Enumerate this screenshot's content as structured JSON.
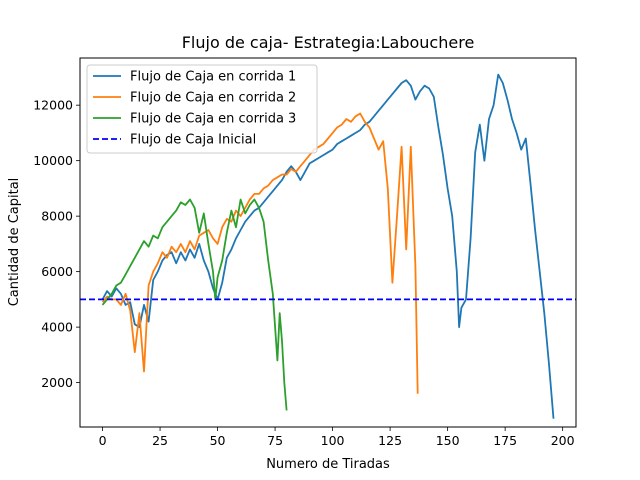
{
  "chart_data": {
    "type": "line",
    "title": "Flujo de caja- Estrategia:Labouchere",
    "xlabel": "Numero de Tiradas",
    "ylabel": "Cantidad de Capital",
    "xlim": [
      -9.8,
      205.8
    ],
    "ylim": [
      400,
      13700
    ],
    "xticks": [
      0,
      25,
      50,
      75,
      100,
      125,
      150,
      175,
      200
    ],
    "yticks": [
      2000,
      4000,
      6000,
      8000,
      10000,
      12000
    ],
    "grid": false,
    "legend_position": "upper-left",
    "colors": {
      "run1": "#1f77b4",
      "run2": "#ff7f0e",
      "run3": "#2ca02c",
      "initial": "#0000ff"
    },
    "series": [
      {
        "name": "Flujo de Caja en corrida 1",
        "color": "#1f77b4",
        "style": "solid",
        "x": [
          0,
          2,
          4,
          6,
          8,
          10,
          12,
          14,
          16,
          18,
          20,
          22,
          24,
          26,
          28,
          30,
          32,
          34,
          36,
          38,
          40,
          42,
          44,
          46,
          48,
          50,
          52,
          54,
          56,
          58,
          60,
          62,
          64,
          66,
          68,
          70,
          72,
          74,
          76,
          78,
          80,
          82,
          84,
          86,
          88,
          90,
          92,
          94,
          96,
          98,
          100,
          102,
          104,
          106,
          108,
          110,
          112,
          114,
          116,
          118,
          120,
          122,
          124,
          126,
          128,
          130,
          132,
          134,
          136,
          138,
          140,
          142,
          144,
          146,
          148,
          150,
          152,
          154,
          155,
          156,
          158,
          160,
          162,
          164,
          166,
          168,
          170,
          172,
          174,
          176,
          178,
          180,
          182,
          184,
          186,
          188,
          190,
          192,
          194,
          196
        ],
        "y": [
          5000,
          5300,
          5100,
          5400,
          5200,
          4800,
          4900,
          4100,
          4000,
          4800,
          4200,
          5700,
          6000,
          6400,
          6600,
          6700,
          6300,
          6700,
          6400,
          6800,
          6500,
          7000,
          6400,
          6000,
          5400,
          5000,
          5600,
          6500,
          6800,
          7200,
          7500,
          7800,
          8000,
          8200,
          8300,
          8500,
          8700,
          8900,
          9100,
          9300,
          9600,
          9800,
          9600,
          9300,
          9600,
          9900,
          10000,
          10100,
          10200,
          10300,
          10400,
          10600,
          10700,
          10800,
          10900,
          11000,
          11100,
          11300,
          11400,
          11600,
          11800,
          12000,
          12200,
          12400,
          12600,
          12800,
          12900,
          12700,
          12200,
          12500,
          12700,
          12600,
          12300,
          11200,
          10200,
          9000,
          8000,
          6000,
          4000,
          4700,
          5000,
          7200,
          10300,
          11300,
          10000,
          11500,
          12000,
          13100,
          12800,
          12200,
          11500,
          11000,
          10400,
          10800,
          9200,
          7500,
          6000,
          4500,
          2700,
          700
        ]
      },
      {
        "name": "Flujo de Caja en corrida 2",
        "color": "#ff7f0e",
        "style": "solid",
        "x": [
          0,
          2,
          4,
          6,
          8,
          10,
          12,
          14,
          16,
          18,
          20,
          22,
          24,
          26,
          28,
          30,
          32,
          34,
          36,
          38,
          40,
          42,
          44,
          46,
          48,
          50,
          52,
          54,
          56,
          58,
          60,
          62,
          64,
          66,
          68,
          70,
          72,
          74,
          76,
          78,
          80,
          82,
          84,
          86,
          88,
          90,
          92,
          94,
          96,
          98,
          100,
          102,
          104,
          106,
          108,
          110,
          112,
          114,
          116,
          118,
          120,
          122,
          124,
          126,
          128,
          130,
          132,
          134,
          136,
          137
        ],
        "y": [
          4900,
          5100,
          5000,
          5000,
          4800,
          5200,
          4600,
          3100,
          4500,
          2400,
          5500,
          6000,
          6300,
          6700,
          6500,
          6900,
          6700,
          7000,
          6700,
          7100,
          6800,
          7300,
          7400,
          7500,
          7200,
          7000,
          7600,
          7900,
          7800,
          8200,
          8000,
          8300,
          8600,
          8800,
          8800,
          9000,
          9100,
          9300,
          9400,
          9500,
          9500,
          9700,
          9600,
          9800,
          10000,
          10200,
          10400,
          10500,
          10600,
          10800,
          11000,
          11200,
          11300,
          11500,
          11400,
          11600,
          11700,
          11400,
          11200,
          10800,
          10400,
          10700,
          9000,
          5600,
          8000,
          10500,
          6800,
          10500,
          6200,
          1600
        ]
      },
      {
        "name": "Flujo de Caja en corrida 3",
        "color": "#2ca02c",
        "style": "solid",
        "x": [
          0,
          2,
          4,
          6,
          8,
          10,
          12,
          14,
          16,
          18,
          20,
          22,
          24,
          26,
          28,
          30,
          32,
          34,
          36,
          38,
          40,
          42,
          44,
          46,
          48,
          49,
          50,
          52,
          54,
          56,
          58,
          60,
          62,
          64,
          66,
          68,
          70,
          72,
          74,
          76,
          77,
          78,
          79,
          80
        ],
        "y": [
          4800,
          5000,
          5200,
          5500,
          5600,
          5900,
          6200,
          6500,
          6800,
          7100,
          6900,
          7300,
          7200,
          7600,
          7800,
          8000,
          8200,
          8500,
          8400,
          8600,
          8300,
          7400,
          8100,
          7000,
          6000,
          5000,
          5800,
          6400,
          7400,
          8200,
          7600,
          8600,
          8100,
          8400,
          8600,
          8300,
          7800,
          6400,
          5200,
          2800,
          4500,
          3500,
          2000,
          1000
        ]
      },
      {
        "name": "Flujo de Caja Inicial",
        "color": "#0000ff",
        "style": "dashed",
        "x": [
          -9.8,
          205.8
        ],
        "y": [
          5000,
          5000
        ]
      }
    ]
  }
}
